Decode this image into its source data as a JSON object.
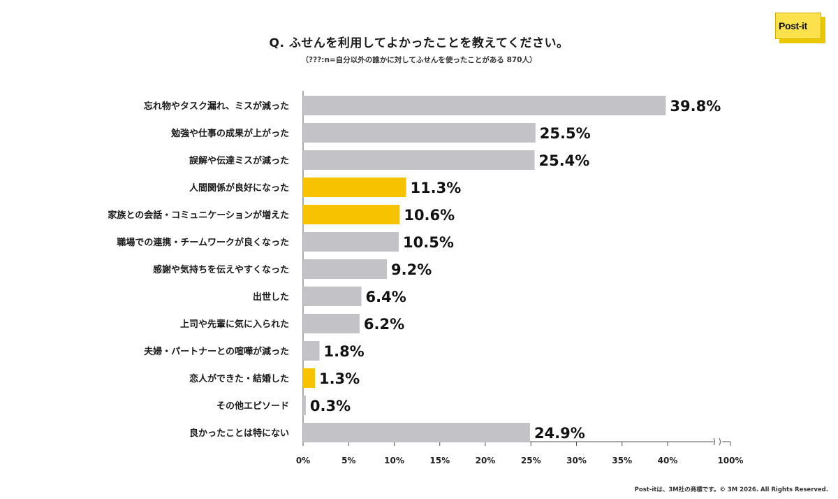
{
  "title": "Q. ふせんを利用してよかったことを教えてください。",
  "subtitle": "（???:n=自分以外の誰かに対してふせんを使ったことがある 870人）",
  "logo_text": "Post-it",
  "footer": "Post-itは、3M社の商標です。© 3M 2026. All Rights Reserved.",
  "colors": {
    "gray": "#c3c2c6",
    "highlight": "#f7c300",
    "axis": "#555555"
  },
  "chart_data": {
    "type": "bar",
    "orientation": "horizontal",
    "categories": [
      "忘れ物やタスク漏れ、ミスが減った",
      "勉強や仕事の成果が上がった",
      "誤解や伝達ミスが減った",
      "人間関係が良好になった",
      "家族との会話・コミュニケーションが増えた",
      "職場での連携・チームワークが良くなった",
      "感謝や気持ちを伝えやすくなった",
      "出世した",
      "上司や先輩に気に入られた",
      "夫婦・パートナーとの喧嘩が減った",
      "恋人ができた・結婚した",
      "その他エピソード",
      "良かったことは特にない"
    ],
    "values": [
      39.8,
      25.5,
      25.4,
      11.3,
      10.6,
      10.5,
      9.2,
      6.4,
      6.2,
      1.8,
      1.3,
      0.3,
      24.9
    ],
    "value_labels": [
      "39.8%",
      "25.5%",
      "25.4%",
      "11.3%",
      "10.6%",
      "10.5%",
      "9.2%",
      "6.4%",
      "6.2%",
      "1.8%",
      "1.3%",
      "0.3%",
      "24.9%"
    ],
    "highlighted": [
      false,
      false,
      false,
      true,
      true,
      false,
      false,
      false,
      false,
      false,
      true,
      false,
      false
    ],
    "x_ticks": [
      0,
      5,
      10,
      15,
      20,
      25,
      30,
      35,
      40,
      100
    ],
    "x_tick_labels": [
      "0%",
      "5%",
      "10%",
      "15%",
      "20%",
      "25%",
      "30%",
      "35%",
      "40%",
      "100%"
    ],
    "xlim": [
      0,
      100
    ],
    "axis_break": "between 40% and 100%",
    "grid": false,
    "legend": "none"
  }
}
